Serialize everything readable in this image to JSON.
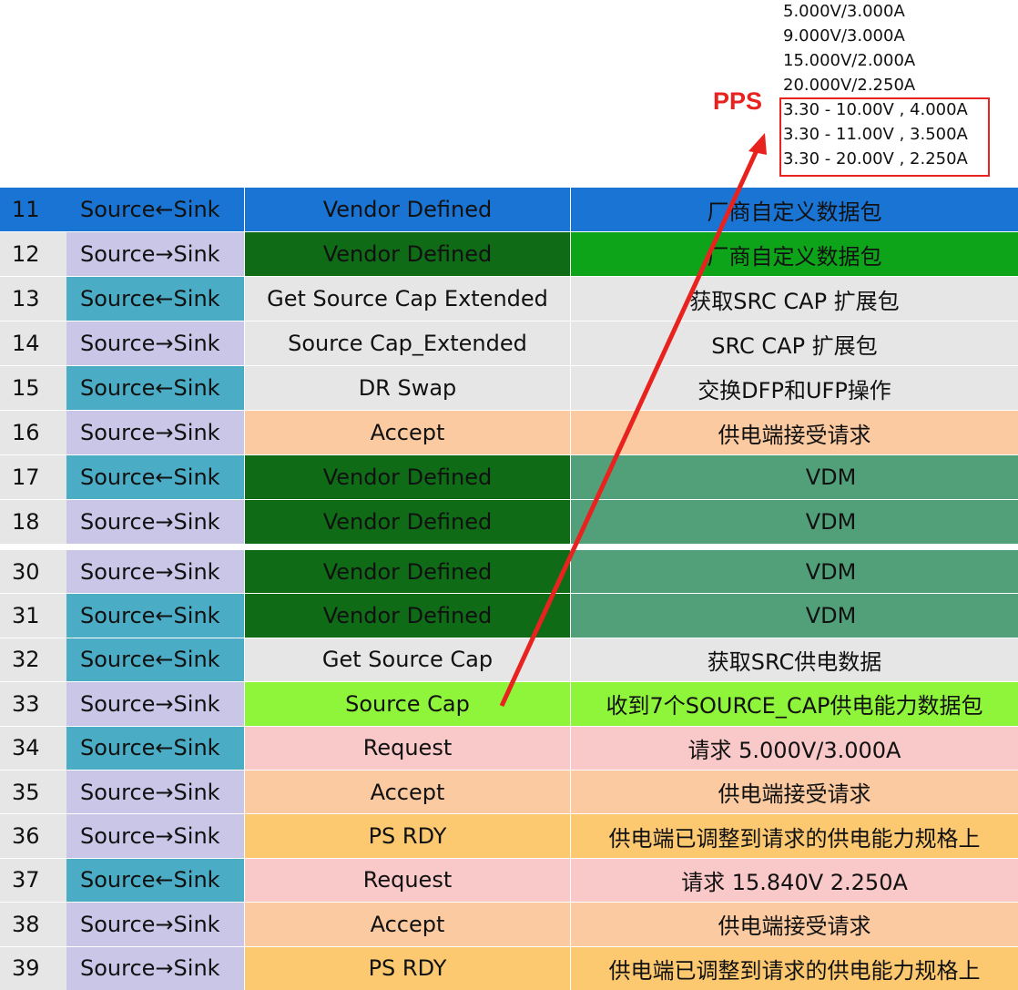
{
  "pdo_list": {
    "items": [
      "5.000V/3.000A",
      "9.000V/3.000A",
      "15.000V/2.000A",
      "20.000V/2.250A",
      "3.30 - 10.00V , 4.000A",
      "3.30 - 11.00V , 3.500A",
      "3.30 - 20.00V , 2.250A"
    ],
    "label": "PPS"
  },
  "table": {
    "rows": [
      [
        "11",
        "Source←Sink",
        "Vendor Defined",
        "厂商自定义数据包"
      ],
      [
        "12",
        "Source→Sink",
        "Vendor Defined",
        "厂商自定义数据包"
      ],
      [
        "13",
        "Source←Sink",
        "Get Source Cap Extended",
        "获取SRC CAP 扩展包"
      ],
      [
        "14",
        "Source→Sink",
        "Source Cap_Extended",
        "SRC CAP 扩展包"
      ],
      [
        "15",
        "Source←Sink",
        "DR Swap",
        "交换DFP和UFP操作"
      ],
      [
        "16",
        "Source→Sink",
        "Accept",
        "供电端接受请求"
      ],
      [
        "17",
        "Source←Sink",
        "Vendor Defined",
        "VDM"
      ],
      [
        "18",
        "Source→Sink",
        "Vendor Defined",
        "VDM"
      ],
      [
        "30",
        "Source→Sink",
        "Vendor Defined",
        "VDM"
      ],
      [
        "31",
        "Source←Sink",
        "Vendor Defined",
        "VDM"
      ],
      [
        "32",
        "Source←Sink",
        "Get Source Cap",
        "获取SRC供电数据"
      ],
      [
        "33",
        "Source→Sink",
        "Source Cap",
        "收到7个SOURCE_CAP供电能力数据包"
      ],
      [
        "34",
        "Source←Sink",
        "Request",
        "请求 5.000V/3.000A"
      ],
      [
        "35",
        "Source→Sink",
        "Accept",
        "供电端接受请求"
      ],
      [
        "36",
        "Source→Sink",
        "PS RDY",
        "供电端已调整到请求的供电能力规格上"
      ],
      [
        "37",
        "Source←Sink",
        "Request",
        "请求 15.840V 2.250A"
      ],
      [
        "38",
        "Source→Sink",
        "Accept",
        "供电端接受请求"
      ],
      [
        "39",
        "Source→Sink",
        "PS RDY",
        "供电端已调整到请求的供电能力规格上"
      ]
    ]
  }
}
